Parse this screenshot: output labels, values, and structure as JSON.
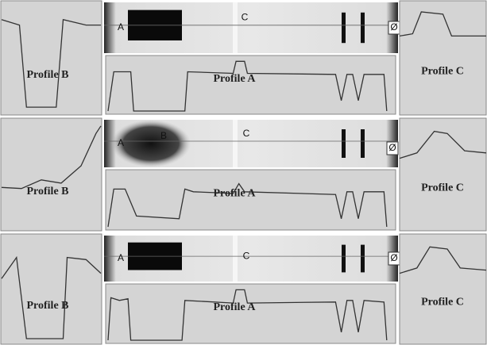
{
  "rows": [
    {
      "profile_b": "Profile B",
      "image_labels": [
        "A",
        "C",
        "Ø"
      ],
      "profile_a": "Profile A",
      "profile_c": "Profile C"
    },
    {
      "profile_b": "Profile B",
      "image_labels": [
        "A",
        "B",
        "C",
        "Ø"
      ],
      "profile_a": "Profile A",
      "profile_c": "Profile C"
    },
    {
      "profile_b": "Profile B",
      "image_labels": [
        "A",
        "C",
        "Ø"
      ],
      "profile_a": "Profile A",
      "profile_c": "Profile C"
    }
  ]
}
